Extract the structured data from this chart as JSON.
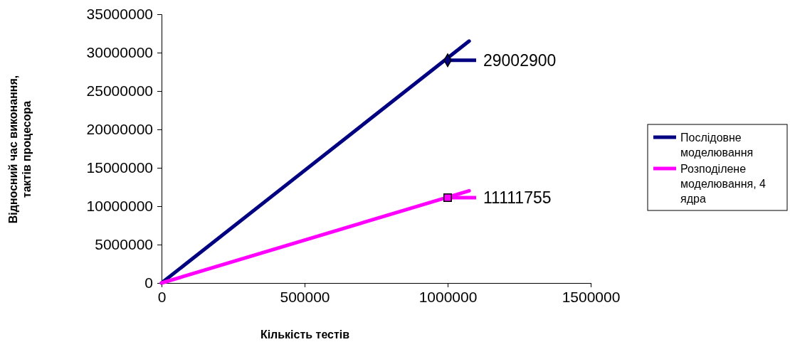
{
  "chart_data": {
    "type": "line",
    "xlabel": "Кількість тестів",
    "ylabel": "Відносний час виконання, тактів процесора",
    "xlim": [
      0,
      1500000
    ],
    "xticks": [
      0,
      500000,
      1000000,
      1500000
    ],
    "ylim": [
      0,
      35000000
    ],
    "yticks": [
      0,
      5000000,
      10000000,
      15000000,
      20000000,
      25000000,
      30000000,
      35000000
    ],
    "grid": false,
    "legend": "right",
    "series": [
      {
        "name": "Послідовне моделювання",
        "color": "#000080",
        "x": [
          0,
          1075000
        ],
        "values": [
          0,
          31500000
        ]
      },
      {
        "name": "Розподілене моделювання, 4 ядра",
        "color": "#ff00ff",
        "x": [
          0,
          1075000
        ],
        "values": [
          0,
          12000000
        ]
      },
      {
        "type": "scatter",
        "marker": "diamond",
        "color": "#000080",
        "x": [
          1000000
        ],
        "values": [
          29002900
        ],
        "value_labels": [
          "29002900"
        ]
      },
      {
        "type": "scatter",
        "marker": "square",
        "color": "#ff00ff",
        "x": [
          1000000
        ],
        "values": [
          11111755
        ],
        "value_labels": [
          "11111755"
        ]
      }
    ]
  }
}
